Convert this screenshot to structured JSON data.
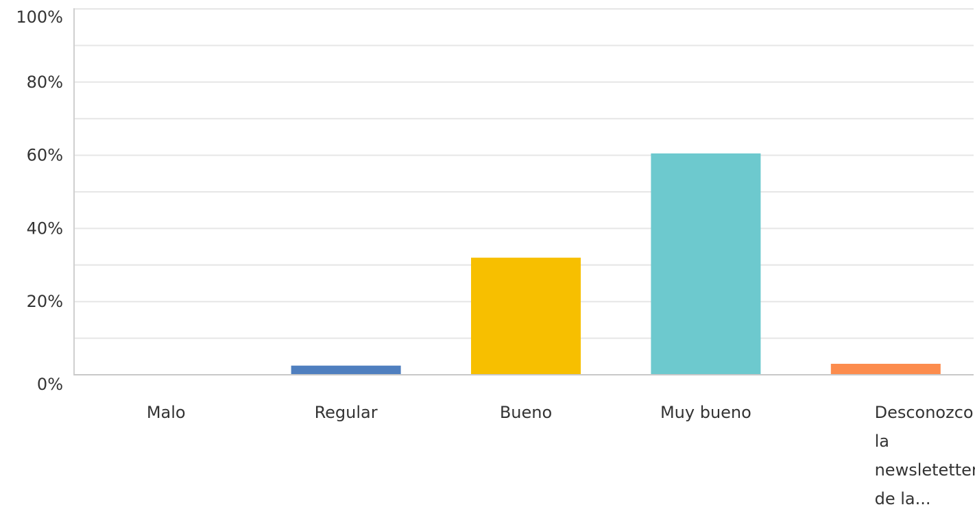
{
  "chart_data": {
    "type": "bar",
    "title": "",
    "xlabel": "",
    "ylabel": "",
    "ylim": [
      0,
      100
    ],
    "yticks": [
      {
        "value": 0,
        "label": "0%"
      },
      {
        "value": 20,
        "label": "20%"
      },
      {
        "value": 40,
        "label": "40%"
      },
      {
        "value": 60,
        "label": "60%"
      },
      {
        "value": 80,
        "label": "80%"
      },
      {
        "value": 100,
        "label": "100%"
      }
    ],
    "grid": true,
    "categories": [
      {
        "label_lines": [
          "Malo"
        ],
        "value": 0,
        "color": "#4a90c8"
      },
      {
        "label_lines": [
          "Regular"
        ],
        "value": 2.5,
        "color": "#4f7fbf"
      },
      {
        "label_lines": [
          "Bueno"
        ],
        "value": 32,
        "color": "#f7bf00"
      },
      {
        "label_lines": [
          "Muy bueno"
        ],
        "value": 60.5,
        "color": "#6dc9ce"
      },
      {
        "label_lines": [
          "Desconozco",
          "la",
          "newsletetter",
          "de la..."
        ],
        "value": 3,
        "color": "#fc8c4d"
      }
    ]
  }
}
